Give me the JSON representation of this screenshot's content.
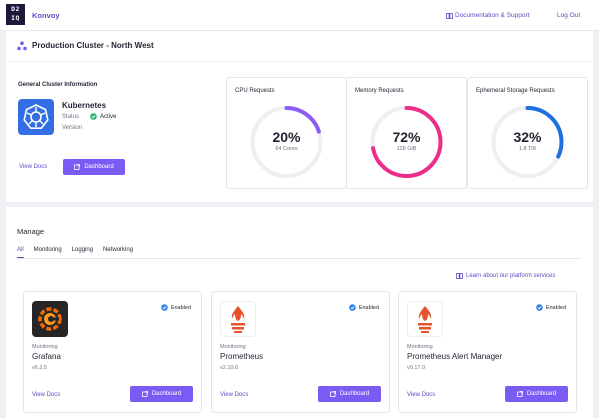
{
  "topbar": {
    "logo_lines": [
      "D2",
      "IQ"
    ],
    "brand": "Konvoy",
    "docs_link": "Documentation & Support",
    "logout": "Log Out"
  },
  "cluster": {
    "title": "Production Cluster - North West"
  },
  "general": {
    "title": "General Cluster Information",
    "name": "Kubernetes",
    "status_label": "Status",
    "status_value": "Active",
    "version_label": "Version",
    "view_docs": "View Docs",
    "dashboard": "Dashboard"
  },
  "stats": [
    {
      "title": "CPU Requests",
      "percent": 20,
      "percent_label": "20%",
      "sub": "64 Cores",
      "color": "#8b5cf6"
    },
    {
      "title": "Memory Requests",
      "percent": 72,
      "percent_label": "72%",
      "sub": "128 GiB",
      "color": "#ec2e8a"
    },
    {
      "title": "Ephemeral Storage Requests",
      "percent": 32,
      "percent_label": "32%",
      "sub": "1.8 TiB",
      "color": "#1f6fe0"
    }
  ],
  "manage": {
    "title": "Manage",
    "tabs": [
      "All",
      "Monitoring",
      "Logging",
      "Networking"
    ],
    "learn": "Learn about our platform services"
  },
  "cards": [
    {
      "icon": "grafana-icon",
      "enabled": "Enabled",
      "category": "Monitoring",
      "name": "Grafana",
      "version": "v6.2.5",
      "view_docs": "View Docs",
      "dashboard": "Dashboard"
    },
    {
      "icon": "prometheus-icon",
      "enabled": "Enabled",
      "category": "Monitoring",
      "name": "Prometheus",
      "version": "v2.10.0",
      "view_docs": "View Docs",
      "dashboard": "Dashboard"
    },
    {
      "icon": "prometheus-icon",
      "enabled": "Enabled",
      "category": "Monitoring",
      "name": "Prometheus Alert Manager",
      "version": "v0.17.0",
      "view_docs": "View Docs",
      "dashboard": "Dashboard"
    }
  ],
  "colors": {
    "accent": "#7a5cf5",
    "link": "#5b4bc4",
    "active_green": "#22b573",
    "enabled_blue": "#2f80ed"
  }
}
